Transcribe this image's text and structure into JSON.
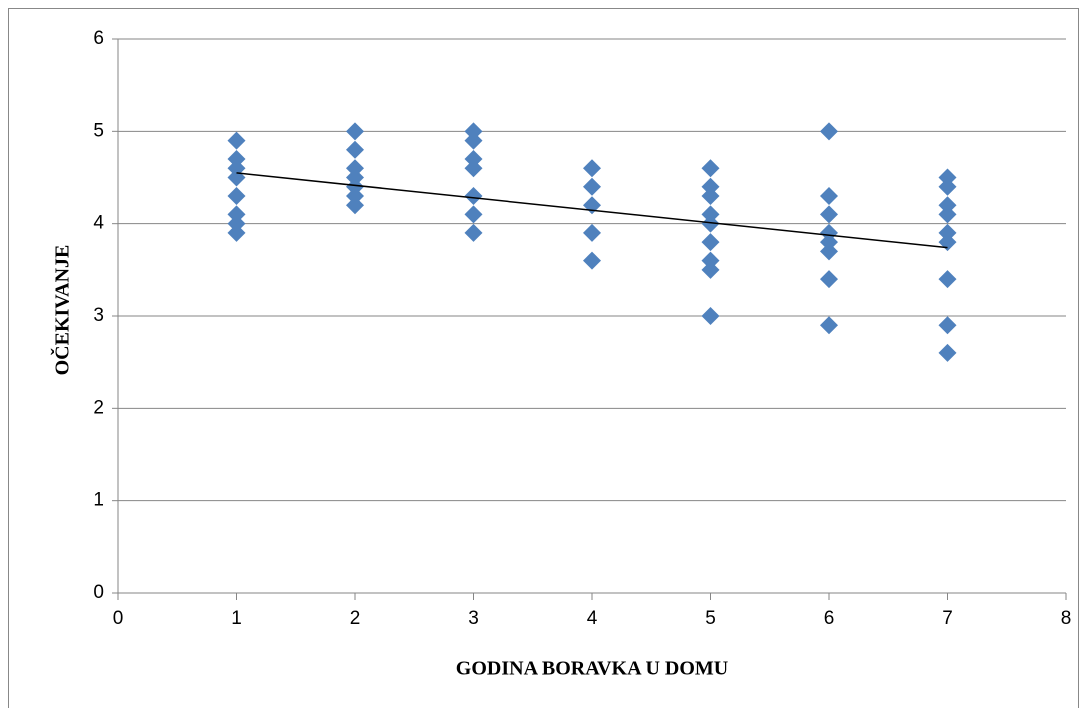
{
  "chart_data": {
    "type": "scatter",
    "x_label": "GODINA BORAVKA U DOMU",
    "y_label": "OČEKIVANJE",
    "x": [
      1,
      1,
      1,
      1,
      1,
      1,
      1,
      1,
      2,
      2,
      2,
      2,
      2,
      2,
      2,
      3,
      3,
      3,
      3,
      3,
      3,
      3,
      4,
      4,
      4,
      4,
      4,
      5,
      5,
      5,
      5,
      5,
      5,
      5,
      5,
      5,
      6,
      6,
      6,
      6,
      6,
      6,
      6,
      6,
      7,
      7,
      7,
      7,
      7,
      7,
      7,
      7,
      7
    ],
    "values": [
      4.9,
      4.7,
      4.6,
      4.5,
      4.3,
      4.1,
      4.0,
      3.9,
      5.0,
      4.8,
      4.6,
      4.5,
      4.4,
      4.3,
      4.2,
      5.0,
      4.9,
      4.7,
      4.6,
      4.3,
      4.1,
      3.9,
      4.6,
      4.4,
      4.2,
      3.9,
      3.6,
      4.6,
      4.4,
      4.3,
      4.1,
      4.0,
      3.8,
      3.6,
      3.5,
      3.0,
      5.0,
      4.3,
      4.1,
      3.9,
      3.8,
      3.7,
      3.4,
      2.9,
      4.5,
      4.4,
      4.2,
      4.1,
      3.9,
      3.8,
      3.4,
      2.9,
      2.6
    ],
    "color": "#4f81bd",
    "trendline": {
      "x": [
        1,
        7
      ],
      "values": [
        4.55,
        3.74
      ],
      "color": "#000000"
    },
    "xlim": [
      0,
      8
    ],
    "xticks": [
      0,
      1,
      2,
      3,
      4,
      5,
      6,
      7,
      8
    ],
    "ylim": [
      0,
      6
    ],
    "yticks": [
      0,
      1,
      2,
      3,
      4,
      5,
      6
    ],
    "grid": true
  }
}
